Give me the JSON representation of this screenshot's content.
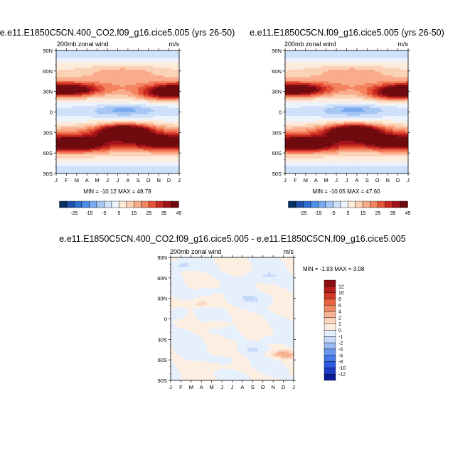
{
  "colors": {
    "wind_scale": [
      "#053061",
      "#1f4fa8",
      "#2f6fd0",
      "#4b8fe8",
      "#79aaf0",
      "#a7c6f4",
      "#cfe0f9",
      "#edf3fc",
      "#fdebdc",
      "#fbd2b6",
      "#f9ab8a",
      "#f3845f",
      "#e5533a",
      "#c92a1f",
      "#a1131a",
      "#6f0a0f"
    ],
    "diff_scale": [
      "#0b1a96",
      "#1d3cc4",
      "#2e5ae0",
      "#4679ea",
      "#6a97f0",
      "#99baf5",
      "#c6d9fa",
      "#e6f0fd",
      "#fdeee2",
      "#fbd6bf",
      "#f7b294",
      "#f28a66",
      "#e8623d",
      "#d13a26",
      "#b31e1a",
      "#8c0d10"
    ]
  },
  "chart_data": [
    {
      "id": "control",
      "type": "heatmap",
      "title": "e.e11.E1850C5CN.400_CO2.f09_g16.cice5.005 (yrs 26-50)",
      "left_label": "200mb zonal wind",
      "units": "m/s",
      "months": [
        "J",
        "F",
        "M",
        "A",
        "M",
        "J",
        "J",
        "A",
        "S",
        "O",
        "N",
        "D",
        "J"
      ],
      "lat_ticks": [
        "90N",
        "60N",
        "30N",
        "0",
        "30S",
        "60S",
        "90S"
      ],
      "lat_values": [
        90,
        60,
        30,
        0,
        -30,
        -60,
        -90
      ],
      "stats": "MIN = -10.12 MAX = 48.78",
      "min": -10.12,
      "max": 48.78,
      "colorbar_labels": [
        "-25",
        "-15",
        "-5",
        "5",
        "15",
        "25",
        "35",
        "45"
      ],
      "levels": [
        -30,
        -25,
        -20,
        -15,
        -10,
        -5,
        0,
        5,
        10,
        15,
        20,
        25,
        30,
        35,
        40,
        45
      ],
      "jets": [
        {
          "lat": 32,
          "month": 0.8,
          "peak": 42,
          "lat_width": 9,
          "month_width": 3.2
        },
        {
          "lat": 32,
          "month": 12.5,
          "peak": 40,
          "lat_width": 9,
          "month_width": 3.2
        },
        {
          "lat": 25,
          "month": 10.5,
          "peak": 20,
          "lat_width": 9,
          "month_width": 2.5
        },
        {
          "lat": -28,
          "month": 6.7,
          "peak": 48,
          "lat_width": 10,
          "month_width": 2.6
        },
        {
          "lat": -48,
          "month": 1.5,
          "peak": 35,
          "lat_width": 11,
          "month_width": 3.5
        },
        {
          "lat": -45,
          "month": 10.8,
          "peak": 30,
          "lat_width": 11,
          "month_width": 3.5
        },
        {
          "lat": 3,
          "month": 6.6,
          "peak": -10,
          "lat_width": 8,
          "month_width": 2.8
        },
        {
          "lat": 60,
          "month": 6.5,
          "peak": 8,
          "lat_width": 8,
          "month_width": 4
        }
      ]
    },
    {
      "id": "experiment",
      "type": "heatmap",
      "title": "e.e11.E1850C5CN.f09_g16.cice5.005 (yrs 26-50)",
      "left_label": "200mb zonal wind",
      "units": "m/s",
      "months": [
        "J",
        "F",
        "M",
        "A",
        "M",
        "J",
        "J",
        "A",
        "S",
        "O",
        "N",
        "D",
        "J"
      ],
      "lat_ticks": [
        "90N",
        "60N",
        "30N",
        "0",
        "30S",
        "60S",
        "90S"
      ],
      "lat_values": [
        90,
        60,
        30,
        0,
        -30,
        -60,
        -90
      ],
      "stats": "MIN = -10.05 MAX = 47.60",
      "min": -10.05,
      "max": 47.6,
      "colorbar_labels": [
        "-25",
        "-15",
        "-5",
        "5",
        "15",
        "25",
        "35",
        "45"
      ],
      "levels": [
        -30,
        -25,
        -20,
        -15,
        -10,
        -5,
        0,
        5,
        10,
        15,
        20,
        25,
        30,
        35,
        40,
        45
      ],
      "jets": [
        {
          "lat": 32,
          "month": 0.8,
          "peak": 41,
          "lat_width": 9,
          "month_width": 3.2
        },
        {
          "lat": 32,
          "month": 12.5,
          "peak": 40,
          "lat_width": 9,
          "month_width": 3.2
        },
        {
          "lat": 25,
          "month": 10.5,
          "peak": 20,
          "lat_width": 9,
          "month_width": 2.5
        },
        {
          "lat": -28,
          "month": 6.7,
          "peak": 47,
          "lat_width": 10,
          "month_width": 2.6
        },
        {
          "lat": -48,
          "month": 1.5,
          "peak": 35,
          "lat_width": 11,
          "month_width": 3.5
        },
        {
          "lat": -45,
          "month": 10.8,
          "peak": 30,
          "lat_width": 11,
          "month_width": 3.5
        },
        {
          "lat": 3,
          "month": 6.6,
          "peak": -10,
          "lat_width": 8,
          "month_width": 2.8
        },
        {
          "lat": 60,
          "month": 6.5,
          "peak": 8,
          "lat_width": 8,
          "month_width": 4
        }
      ]
    },
    {
      "id": "difference",
      "type": "heatmap",
      "title": "e.e11.E1850C5CN.400_CO2.f09_g16.cice5.005 - e.e11.E1850C5CN.f09_g16.cice5.005",
      "left_label": "200mb zonal wind",
      "units": "m/s",
      "months": [
        "J",
        "F",
        "M",
        "A",
        "M",
        "J",
        "J",
        "A",
        "S",
        "O",
        "N",
        "D",
        "J"
      ],
      "lat_ticks": [
        "90N",
        "60N",
        "30N",
        "0",
        "30S",
        "60S",
        "90S"
      ],
      "lat_values": [
        90,
        60,
        30,
        0,
        -30,
        -60,
        -90
      ],
      "stats": "MIN = -1.93 MAX =  3.08",
      "min": -1.93,
      "max": 3.08,
      "colorbar_labels": [
        "12",
        "10",
        "8",
        "6",
        "4",
        "2",
        "1",
        "0",
        "-1",
        "-2",
        "-4",
        "-6",
        "-8",
        "-10",
        "-12"
      ],
      "levels": [
        -12,
        -10,
        -8,
        -6,
        -4,
        -2,
        -1,
        0,
        1,
        2,
        4,
        6,
        8,
        10,
        12
      ],
      "features": [
        {
          "lat": 78,
          "month": 1.2,
          "value": -1.2,
          "lat_width": 6,
          "month_width": 1.2
        },
        {
          "lat": 8,
          "month": 0.7,
          "value": -1.1,
          "lat_width": 10,
          "month_width": 0.9
        },
        {
          "lat": 22,
          "month": 3.0,
          "value": 1.4,
          "lat_width": 5,
          "month_width": 1.0
        },
        {
          "lat": 40,
          "month": 3.5,
          "value": -1.0,
          "lat_width": 6,
          "month_width": 1.2
        },
        {
          "lat": -8,
          "month": 4.5,
          "value": 1.3,
          "lat_width": 5,
          "month_width": 1.1
        },
        {
          "lat": -52,
          "month": 11.0,
          "value": 2.6,
          "lat_width": 6,
          "month_width": 1.4
        },
        {
          "lat": -60,
          "month": 5.3,
          "value": -1.1,
          "lat_width": 6,
          "month_width": 0.9
        },
        {
          "lat": -45,
          "month": 7.8,
          "value": -0.9,
          "lat_width": 6,
          "month_width": 1.2
        },
        {
          "lat": 30,
          "month": 8.5,
          "value": -0.8,
          "lat_width": 8,
          "month_width": 2.2
        },
        {
          "lat": -30,
          "month": 9.8,
          "value": -0.8,
          "lat_width": 5,
          "month_width": 1.0
        },
        {
          "lat": 62,
          "month": 9.0,
          "value": -0.8,
          "lat_width": 7,
          "month_width": 1.8
        },
        {
          "lat": -70,
          "month": 3.5,
          "value": 1.0,
          "lat_width": 5,
          "month_width": 1.3
        }
      ]
    }
  ]
}
